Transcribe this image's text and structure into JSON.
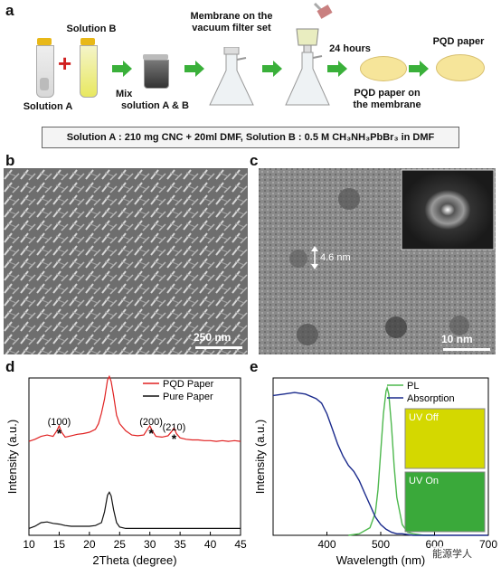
{
  "panel_letters": {
    "a": "a",
    "b": "b",
    "c": "c",
    "d": "d",
    "e": "e"
  },
  "schematic": {
    "solution_b": "Solution B",
    "solution_a": "Solution A",
    "mix_line1": "Mix",
    "mix_line2": "solution A & B",
    "membrane_line1": "Membrane on the",
    "membrane_line2": "vacuum filter set",
    "hours": "24 hours",
    "pqd_on_membrane_line1": "PQD paper on",
    "pqd_on_membrane_line2": "the membrane",
    "pqd_paper": "PQD paper",
    "caption": "Solution A : 210 mg CNC + 20ml DMF, Solution B : 0.5 M CH₃NH₃PbBr₃ in DMF"
  },
  "sem": {
    "scalebar": "250 nm"
  },
  "tem": {
    "scalebar": "10 nm",
    "particle_size": "4.6 nm"
  },
  "watermark": "能源学人",
  "chart_data": [
    {
      "type": "line",
      "xlabel": "2Theta (degree)",
      "ylabel": "Intensity (a.u.)",
      "xlim": [
        10,
        45
      ],
      "xticks": [
        10,
        15,
        20,
        25,
        30,
        35,
        40,
        45
      ],
      "legend_position": "top-right",
      "series": [
        {
          "name": "PQD Paper",
          "color": "#e02020",
          "x": [
            10,
            11,
            12,
            13,
            14,
            14.6,
            15,
            15.4,
            16,
            17,
            18,
            19,
            20,
            21,
            21.5,
            22,
            22.5,
            23,
            23.3,
            23.6,
            24,
            24.5,
            25,
            26,
            27,
            28,
            29,
            29.6,
            30,
            30.4,
            31,
            32,
            33,
            33.6,
            34,
            34.4,
            35,
            36,
            37,
            38,
            39,
            40,
            41,
            42,
            43,
            44,
            45
          ],
          "y": [
            0.05,
            0.08,
            0.12,
            0.14,
            0.12,
            0.2,
            0.27,
            0.18,
            0.11,
            0.13,
            0.15,
            0.16,
            0.18,
            0.22,
            0.3,
            0.45,
            0.65,
            0.92,
            0.97,
            0.9,
            0.7,
            0.42,
            0.3,
            0.2,
            0.14,
            0.13,
            0.14,
            0.22,
            0.27,
            0.2,
            0.12,
            0.11,
            0.13,
            0.19,
            0.24,
            0.16,
            0.1,
            0.08,
            0.07,
            0.07,
            0.06,
            0.06,
            0.05,
            0.06,
            0.05,
            0.06,
            0.05
          ]
        },
        {
          "name": "Pure Paper",
          "color": "#111111",
          "x": [
            10,
            11,
            12,
            13,
            14,
            15,
            16,
            17,
            18,
            19,
            20,
            21,
            22,
            22.5,
            23,
            23.3,
            23.6,
            24,
            24.5,
            25,
            26,
            27,
            28,
            29,
            30,
            31,
            32,
            33,
            34,
            35,
            36,
            37,
            38,
            39,
            40,
            41,
            42,
            43,
            44,
            45
          ],
          "y": [
            0.02,
            0.05,
            0.1,
            0.11,
            0.09,
            0.08,
            0.06,
            0.05,
            0.05,
            0.05,
            0.05,
            0.06,
            0.1,
            0.25,
            0.48,
            0.52,
            0.47,
            0.28,
            0.1,
            0.04,
            0.02,
            0.02,
            0.02,
            0.02,
            0.02,
            0.02,
            0.02,
            0.02,
            0.02,
            0.02,
            0.02,
            0.02,
            0.02,
            0.02,
            0.02,
            0.02,
            0.02,
            0.02,
            0.02,
            0.02
          ]
        }
      ],
      "annotations": [
        {
          "text": "(100)",
          "x": 15
        },
        {
          "text": "(200)",
          "x": 30.2
        },
        {
          "text": "(210)",
          "x": 34
        }
      ]
    },
    {
      "type": "line",
      "xlabel": "Wavelength (nm)",
      "ylabel": "Intensity (a.u.)",
      "xlim": [
        300,
        700
      ],
      "xticks": [
        400,
        500,
        600,
        700
      ],
      "legend_position": "top-right",
      "series": [
        {
          "name": "PL",
          "color": "#4db84d",
          "x": [
            440,
            460,
            480,
            490,
            495,
            500,
            505,
            510,
            512,
            515,
            520,
            525,
            530,
            540,
            550,
            560,
            580,
            600
          ],
          "y": [
            0,
            0.01,
            0.05,
            0.15,
            0.3,
            0.55,
            0.8,
            0.95,
            0.97,
            0.93,
            0.72,
            0.45,
            0.25,
            0.07,
            0.02,
            0.01,
            0,
            0
          ]
        },
        {
          "name": "Absorption",
          "color": "#1a2a8c",
          "x": [
            300,
            320,
            340,
            360,
            380,
            390,
            400,
            410,
            420,
            430,
            440,
            450,
            460,
            470,
            480,
            490,
            500,
            510,
            520,
            530,
            540,
            560,
            600,
            650,
            700
          ],
          "y": [
            0.92,
            0.93,
            0.94,
            0.93,
            0.9,
            0.87,
            0.8,
            0.7,
            0.6,
            0.52,
            0.46,
            0.42,
            0.36,
            0.28,
            0.2,
            0.12,
            0.07,
            0.04,
            0.02,
            0.01,
            0.01,
            0,
            0,
            0,
            0
          ]
        }
      ],
      "insets": [
        {
          "text": "UV Off",
          "color": "#d4d800"
        },
        {
          "text": "UV On",
          "color": "#3aa93a"
        }
      ]
    }
  ]
}
